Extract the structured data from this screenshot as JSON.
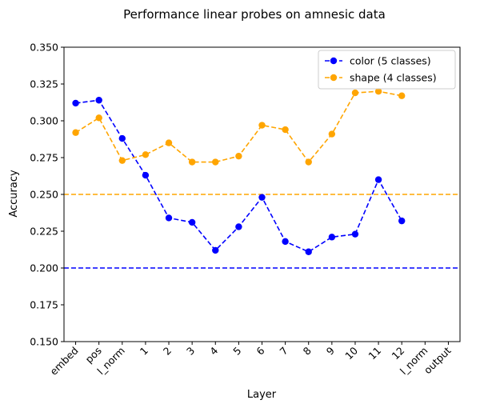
{
  "chart_data": {
    "type": "line",
    "title": "Performance linear probes on amnesic data",
    "xlabel": "Layer",
    "ylabel": "Accuracy",
    "categories": [
      "embed",
      "pos",
      "l_norm",
      "1",
      "2",
      "3",
      "4",
      "5",
      "6",
      "7",
      "8",
      "9",
      "10",
      "11",
      "12",
      "l_norm",
      "output"
    ],
    "ylim": [
      0.15,
      0.35
    ],
    "yticks": [
      "0.150",
      "0.175",
      "0.200",
      "0.225",
      "0.250",
      "0.275",
      "0.300",
      "0.325",
      "0.350"
    ],
    "ytick_values": [
      0.15,
      0.175,
      0.2,
      0.225,
      0.25,
      0.275,
      0.3,
      0.325,
      0.35
    ],
    "grid": false,
    "legend_placement": "top-right",
    "series": [
      {
        "name": "color (5 classes)",
        "color": "#0000ff",
        "values": [
          0.312,
          0.314,
          0.288,
          0.263,
          0.234,
          0.231,
          0.212,
          0.228,
          0.248,
          0.218,
          0.211,
          0.221,
          0.223,
          0.26,
          0.232,
          null,
          null
        ]
      },
      {
        "name": "shape (4 classes)",
        "color": "#ffa500",
        "values": [
          0.292,
          0.302,
          0.273,
          0.277,
          0.285,
          0.272,
          0.272,
          0.276,
          0.297,
          0.294,
          0.272,
          0.291,
          0.319,
          0.32,
          0.317,
          null,
          null
        ]
      }
    ],
    "reference_lines": [
      {
        "y": 0.2,
        "color": "#0000ff",
        "style": "dashed"
      },
      {
        "y": 0.25,
        "color": "#ffa500",
        "style": "dashed"
      }
    ]
  }
}
